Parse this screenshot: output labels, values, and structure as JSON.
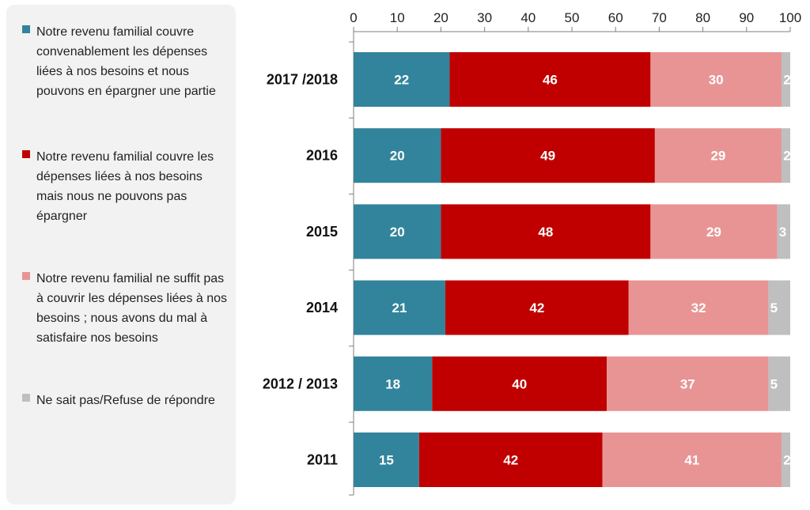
{
  "chart_data": {
    "type": "bar",
    "orientation": "horizontal",
    "stacked": true,
    "categories": [
      "2017 /2018",
      "2016",
      "2015",
      "2014",
      "2012 / 2013",
      "2011"
    ],
    "series": [
      {
        "name": "Notre revenu familial couvre convenablement les dépenses liées à nos besoins et nous pouvons en épargner une partie",
        "color": "#31849b",
        "values": [
          22,
          20,
          20,
          21,
          18,
          15
        ]
      },
      {
        "name": "Notre revenu familial couvre les dépenses liées à nos besoins mais nous ne pouvons pas épargner",
        "color": "#c00000",
        "values": [
          46,
          49,
          48,
          42,
          40,
          42
        ]
      },
      {
        "name": "Notre revenu familial ne suffit pas à couvrir les dépenses liées à nos besoins ; nous avons du mal à satisfaire nos besoins",
        "color": "#e99494",
        "values": [
          30,
          29,
          29,
          32,
          37,
          41
        ]
      },
      {
        "name": "Ne sait pas/Refuse de répondre",
        "color": "#bfbfbf",
        "values": [
          2,
          2,
          3,
          5,
          5,
          2
        ]
      }
    ],
    "xlim": [
      0,
      100
    ],
    "xticks": [
      0,
      10,
      20,
      30,
      40,
      50,
      60,
      70,
      80,
      90,
      100
    ],
    "axis_position": "top",
    "legend_position": "left",
    "grid": false
  }
}
